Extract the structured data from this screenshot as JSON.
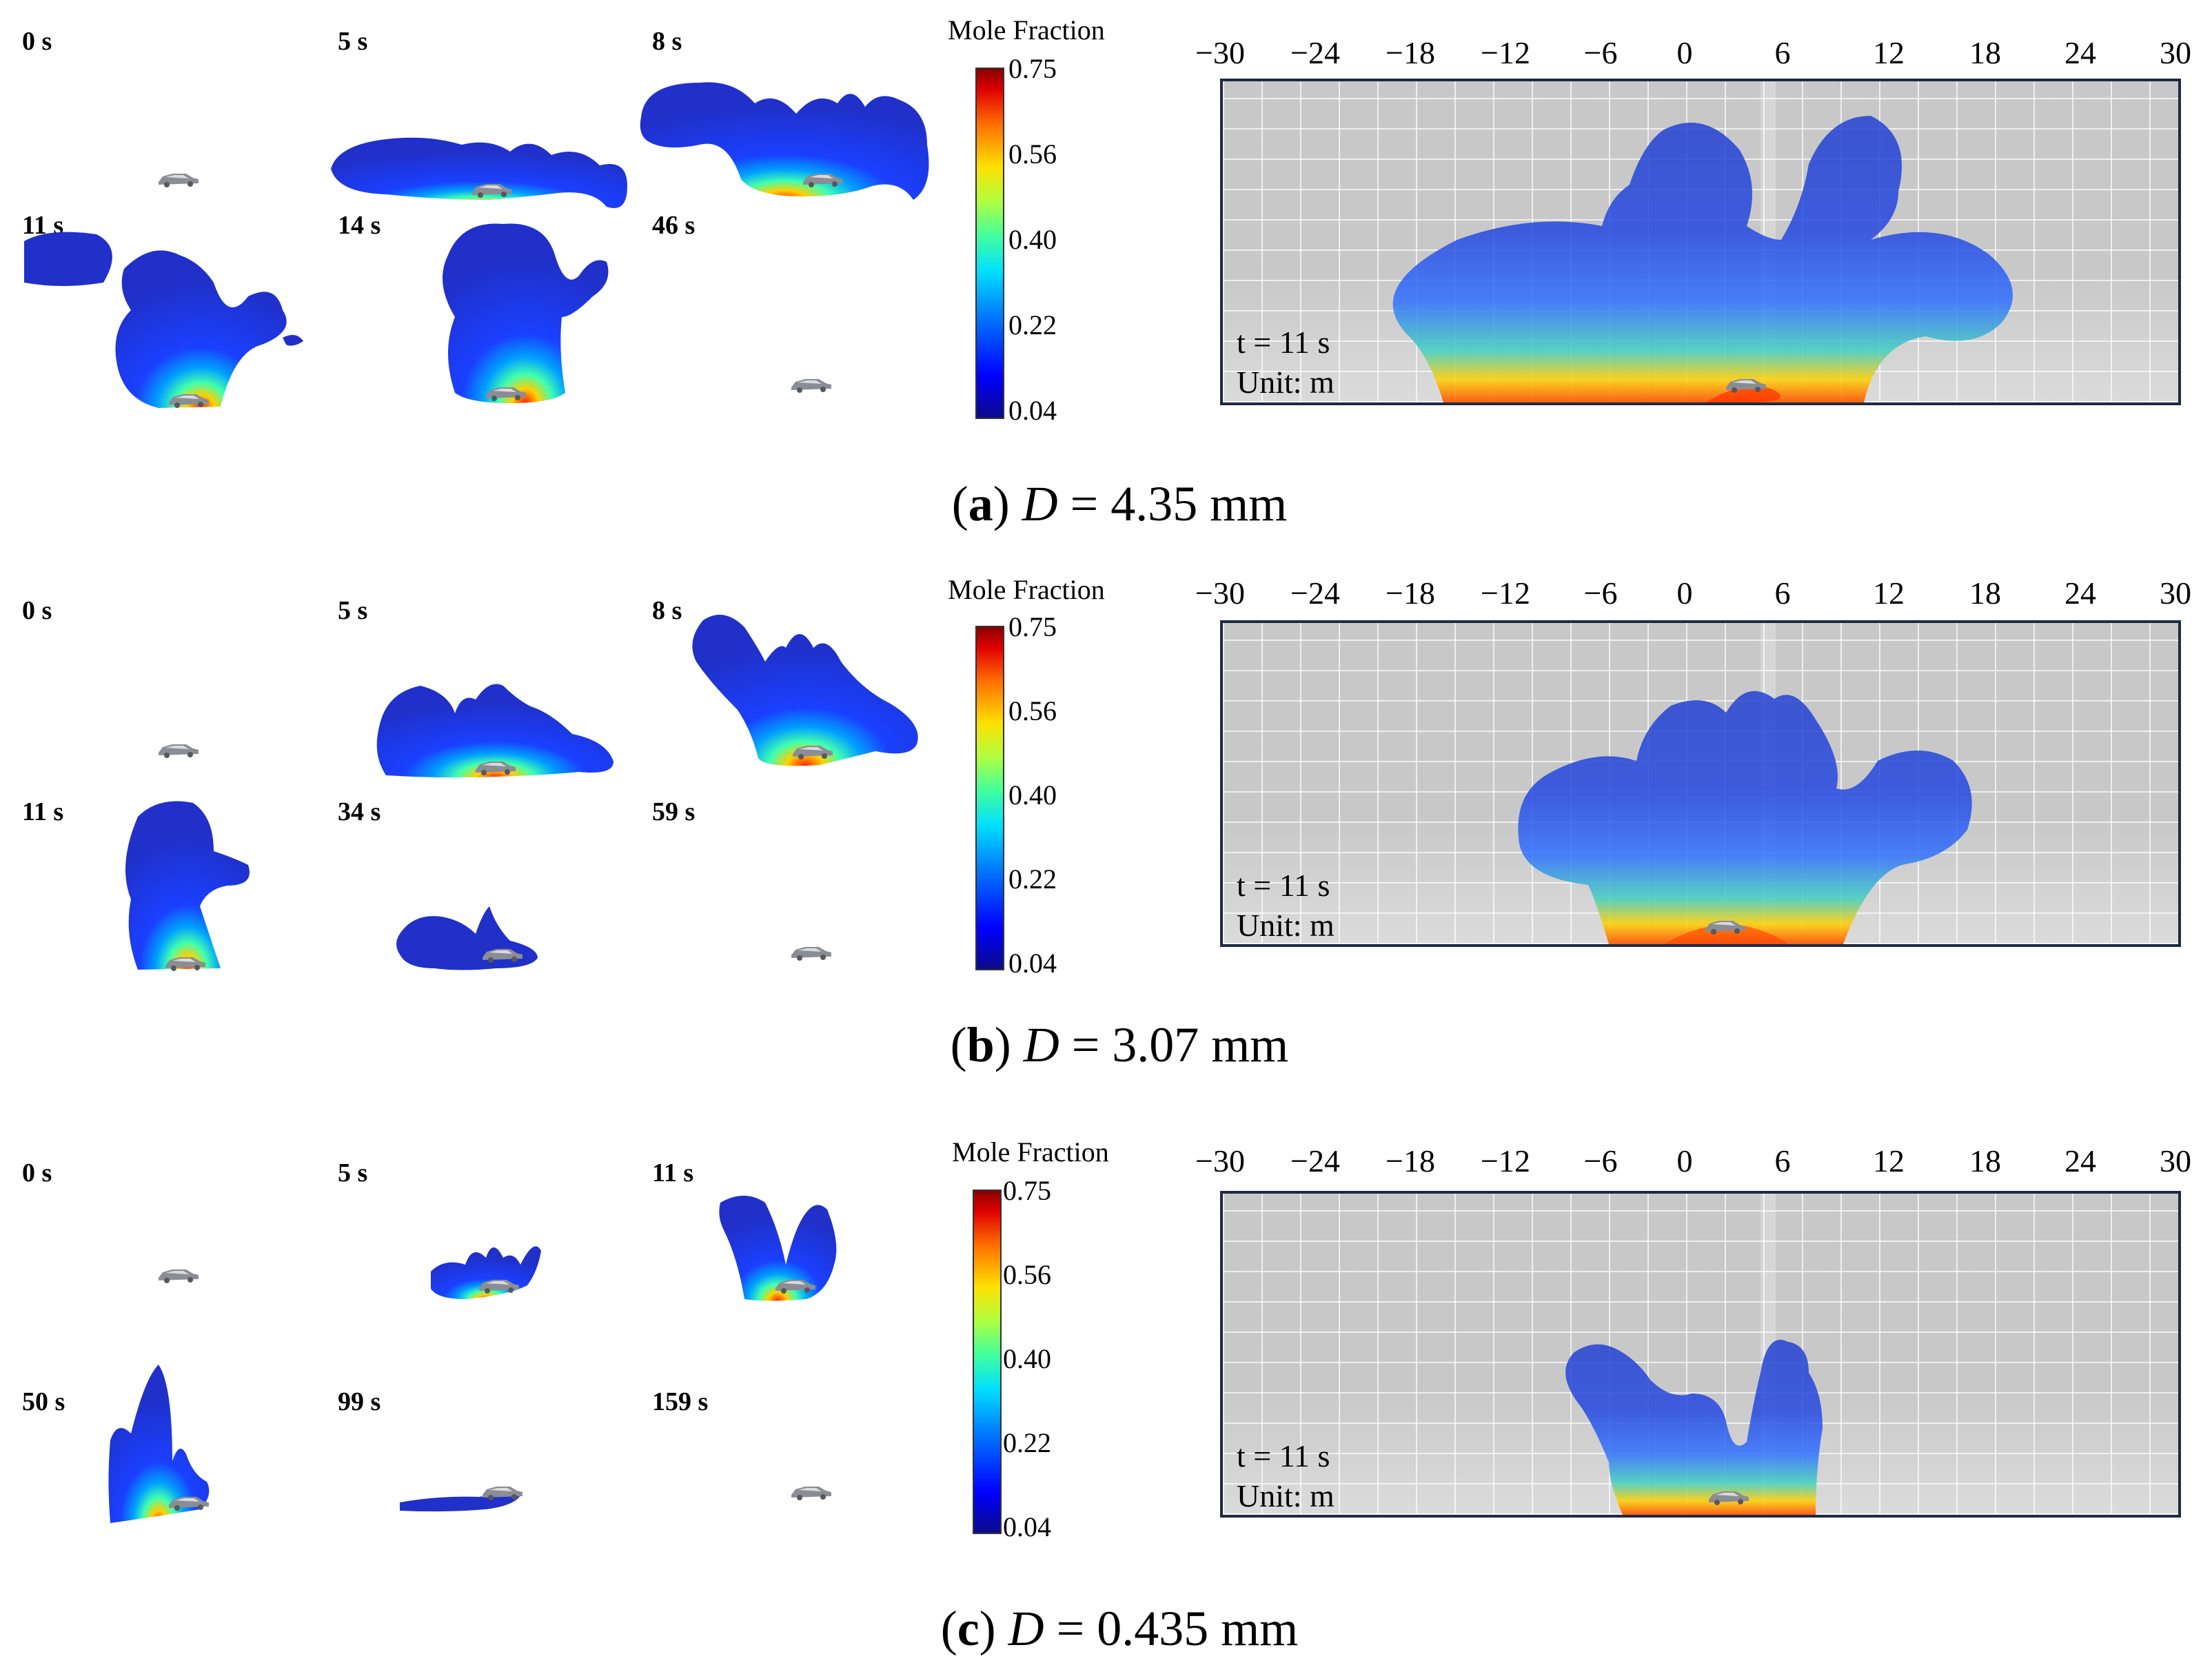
{
  "panels": [
    {
      "id": "a",
      "snapshots": [
        "0 s",
        "5 s",
        "8 s",
        "11 s",
        "14 s",
        "46 s"
      ],
      "colorbar": {
        "title": "Mole Fraction",
        "ticks": [
          "0.75",
          "0.56",
          "0.40",
          "0.22",
          "0.04"
        ]
      },
      "domain": {
        "x_ticks": [
          "−30",
          "−24",
          "−18",
          "−12",
          "−6",
          "0",
          "6",
          "12",
          "18",
          "24",
          "30"
        ],
        "time": "t = 11 s",
        "unit": "Unit: m"
      },
      "caption": {
        "letter": "a",
        "var": "D",
        "rest": " = 4.35 mm"
      }
    },
    {
      "id": "b",
      "snapshots": [
        "0 s",
        "5 s",
        "8 s",
        "11 s",
        "34 s",
        "59 s"
      ],
      "colorbar": {
        "title": "Mole Fraction",
        "ticks": [
          "0.75",
          "0.56",
          "0.40",
          "0.22",
          "0.04"
        ]
      },
      "domain": {
        "x_ticks": [
          "−30",
          "−24",
          "−18",
          "−12",
          "−6",
          "0",
          "6",
          "12",
          "18",
          "24",
          "30"
        ],
        "time": "t = 11 s",
        "unit": "Unit: m"
      },
      "caption": {
        "letter": "b",
        "var": "D",
        "rest": " = 3.07 mm"
      }
    },
    {
      "id": "c",
      "snapshots": [
        "0 s",
        "5 s",
        "11 s",
        "50 s",
        "99 s",
        "159 s"
      ],
      "colorbar": {
        "title": "Mole Fraction",
        "ticks": [
          "0.75",
          "0.56",
          "0.40",
          "0.22",
          "0.04"
        ]
      },
      "domain": {
        "x_ticks": [
          "−30",
          "−24",
          "−18",
          "−12",
          "−6",
          "0",
          "6",
          "12",
          "18",
          "24",
          "30"
        ],
        "time": "t = 11 s",
        "unit": "Unit: m"
      },
      "caption": {
        "letter": "c",
        "var": "D",
        "rest": " = 0.435 mm"
      }
    }
  ]
}
